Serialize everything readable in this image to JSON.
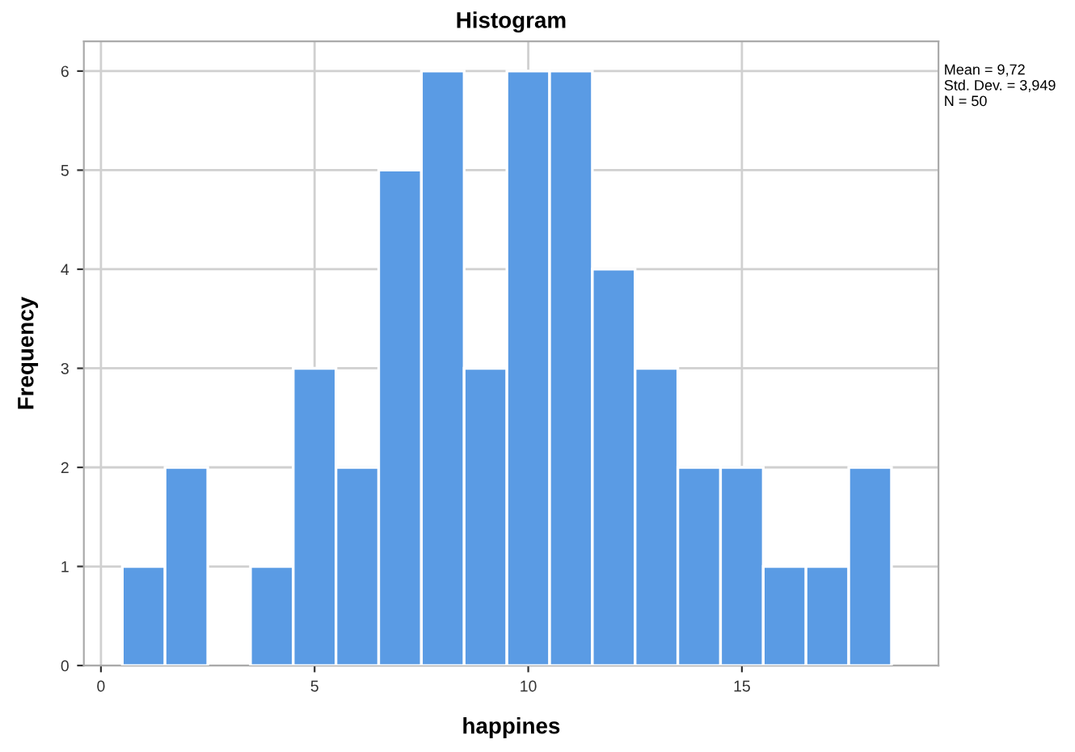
{
  "chart_data": {
    "type": "histogram",
    "title": "Histogram",
    "xlabel": "happines",
    "ylabel": "Frequency",
    "bins": [
      0.5,
      1.5,
      2.5,
      3.5,
      4.5,
      5.5,
      6.5,
      7.5,
      8.5,
      9.5,
      10.5,
      11.5,
      12.5,
      13.5,
      14.5,
      15.5,
      16.5,
      17.5,
      18.5
    ],
    "values": [
      1,
      2,
      0,
      1,
      3,
      2,
      5,
      6,
      3,
      6,
      6,
      4,
      3,
      2,
      2,
      1,
      1,
      2
    ],
    "color": "#5a9be4",
    "xlim": [
      -0.4,
      19.6
    ],
    "xticks": [
      0,
      5,
      10,
      15
    ],
    "ylim": [
      0,
      6.3
    ],
    "yticks": [
      0,
      1,
      2,
      3,
      4,
      5,
      6
    ],
    "grid": true,
    "annotations": [
      "Mean = 9,72\nStd. Dev. = 3,949\nN = 50"
    ]
  }
}
